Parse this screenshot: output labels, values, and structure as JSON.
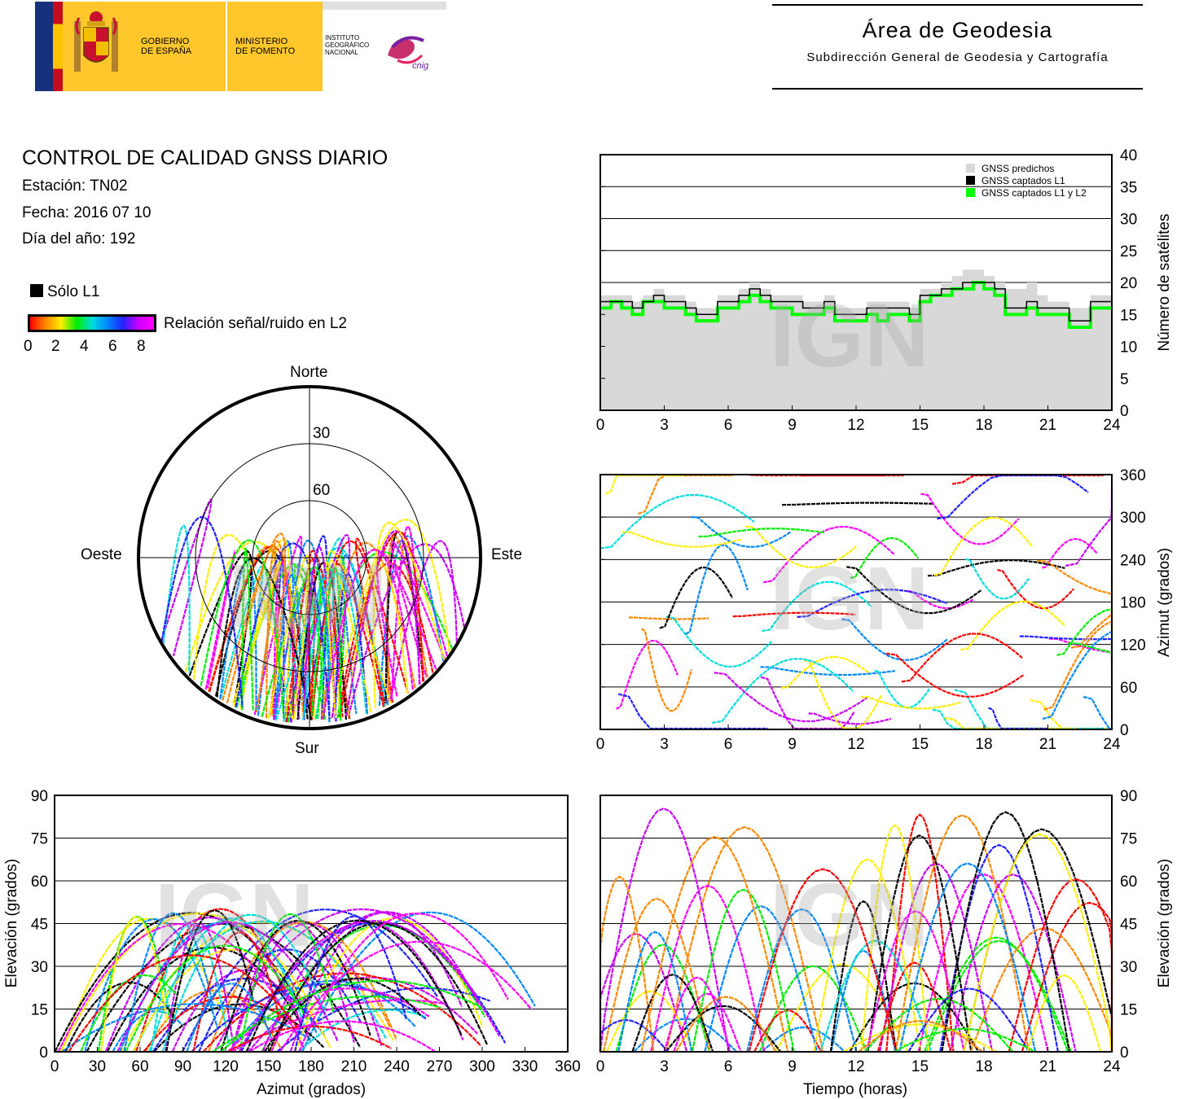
{
  "header": {
    "gov_line1": "GOBIERNO",
    "gov_line2": "DE ESPAÑA",
    "min_line1": "MINISTERIO",
    "min_line2": "DE FOMENTO",
    "inst_line1": "INSTITUTO",
    "inst_line2": "GEOGRÁFICO",
    "inst_line3": "NACIONAL",
    "cnig_logo": "cnig",
    "area_title": "Área de Geodesia",
    "area_subtitle": "Subdirección General de Geodesia y Cartografía"
  },
  "info": {
    "title": "CONTROL DE CALIDAD GNSS DIARIO",
    "station": "Estación: TN02",
    "date": "Fecha: 2016 07 10",
    "doy": "Día del año: 192"
  },
  "legend": {
    "l1_only": "Sólo L1",
    "snr_label": "Relación señal/ruido en L2",
    "snr_ticks": [
      "0",
      "2",
      "4",
      "6",
      "8"
    ],
    "snr_colors": [
      "#ff0000",
      "#ff8800",
      "#ffee00",
      "#00ee00",
      "#00dddd",
      "#0088ff",
      "#2222ff",
      "#cc00ff",
      "#ff00ff"
    ],
    "l1_color": "#000000"
  },
  "watermark": "IGN",
  "chart_data": [
    {
      "type": "line",
      "id": "satellite-count",
      "x": [
        0,
        0.5,
        1,
        1.5,
        2,
        2.5,
        3,
        3.5,
        4,
        4.5,
        5,
        5.5,
        6,
        6.5,
        7,
        7.5,
        8,
        8.5,
        9,
        9.5,
        10,
        10.5,
        11,
        11.5,
        12,
        12.5,
        13,
        13.5,
        14,
        14.5,
        15,
        15.5,
        16,
        16.5,
        17,
        17.5,
        18,
        18.5,
        19,
        19.5,
        20,
        20.5,
        21,
        21.5,
        22,
        22.5,
        23,
        23.5,
        24
      ],
      "xticks": [
        "0",
        "3",
        "6",
        "9",
        "12",
        "15",
        "18",
        "21",
        "24"
      ],
      "xlim": [
        0,
        24
      ],
      "ylim": [
        0,
        40
      ],
      "yticks": [
        "0",
        "5",
        "10",
        "15",
        "20",
        "25",
        "30",
        "35",
        "40"
      ],
      "ylabel": "Número de satélites",
      "series": [
        {
          "name": "GNSS predichos",
          "color": "#d8d8d8",
          "values": [
            18,
            18,
            18,
            17,
            18,
            19,
            18,
            18,
            17,
            16,
            16,
            18,
            18,
            19,
            20,
            19,
            18,
            18,
            18,
            17,
            17,
            18,
            16,
            16,
            16,
            17,
            17,
            17,
            17,
            16,
            19,
            19,
            20,
            21,
            22,
            22,
            21,
            20,
            19,
            19,
            20,
            18,
            17,
            17,
            16,
            16,
            18,
            18,
            18
          ]
        },
        {
          "name": "GNSS captados L1",
          "color": "#000000",
          "values": [
            17,
            17,
            17,
            16,
            17,
            18,
            17,
            17,
            16,
            15,
            15,
            17,
            17,
            18,
            19,
            18,
            17,
            17,
            17,
            16,
            16,
            17,
            15,
            15,
            15,
            16,
            16,
            16,
            16,
            15,
            18,
            18,
            19,
            19,
            20,
            20,
            20,
            19,
            16,
            16,
            17,
            16,
            16,
            16,
            14,
            14,
            17,
            17,
            16
          ]
        },
        {
          "name": "GNSS captados L1 y L2",
          "color": "#00ff00",
          "values": [
            16,
            17,
            16,
            15,
            17,
            17,
            16,
            16,
            15,
            14,
            14,
            16,
            16,
            17,
            18,
            17,
            16,
            16,
            15,
            15,
            15,
            16,
            14,
            14,
            14,
            15,
            14,
            15,
            15,
            14,
            17,
            18,
            18,
            19,
            19,
            20,
            19,
            18,
            15,
            15,
            16,
            15,
            15,
            15,
            13,
            13,
            16,
            16,
            16
          ]
        }
      ],
      "legend_position": "top-right",
      "grid": true
    },
    {
      "type": "scatter",
      "id": "azimuth-vs-time",
      "xlim": [
        0,
        24
      ],
      "xticks": [
        "0",
        "3",
        "6",
        "9",
        "12",
        "15",
        "18",
        "21",
        "24"
      ],
      "ylim": [
        0,
        360
      ],
      "yticks": [
        "0",
        "60",
        "120",
        "180",
        "240",
        "300",
        "360"
      ],
      "ylabel": "Azimut (grados)",
      "grid": true
    },
    {
      "type": "scatter",
      "id": "elevation-vs-azimuth",
      "xlim": [
        0,
        360
      ],
      "xticks": [
        "0",
        "30",
        "60",
        "90",
        "120",
        "150",
        "180",
        "210",
        "240",
        "270",
        "300",
        "330",
        "360"
      ],
      "xlabel": "Azimut (grados)",
      "ylim": [
        0,
        90
      ],
      "yticks": [
        "0",
        "15",
        "30",
        "45",
        "60",
        "75",
        "90"
      ],
      "ylabel": "Elevación (grados)",
      "grid": true
    },
    {
      "type": "scatter",
      "id": "elevation-vs-time",
      "xlim": [
        0,
        24
      ],
      "xticks": [
        "0",
        "3",
        "6",
        "9",
        "12",
        "15",
        "18",
        "21",
        "24"
      ],
      "xlabel": "Tiempo (horas)",
      "ylim": [
        0,
        90
      ],
      "yticks": [
        "0",
        "15",
        "30",
        "45",
        "60",
        "75",
        "90"
      ],
      "ylabel": "Elevación (grados)",
      "grid": true
    },
    {
      "type": "scatter",
      "id": "skyplot",
      "rings": [
        "30",
        "60"
      ],
      "directions": {
        "north": "Norte",
        "south": "Sur",
        "west": "Oeste",
        "east": "Este"
      }
    }
  ]
}
